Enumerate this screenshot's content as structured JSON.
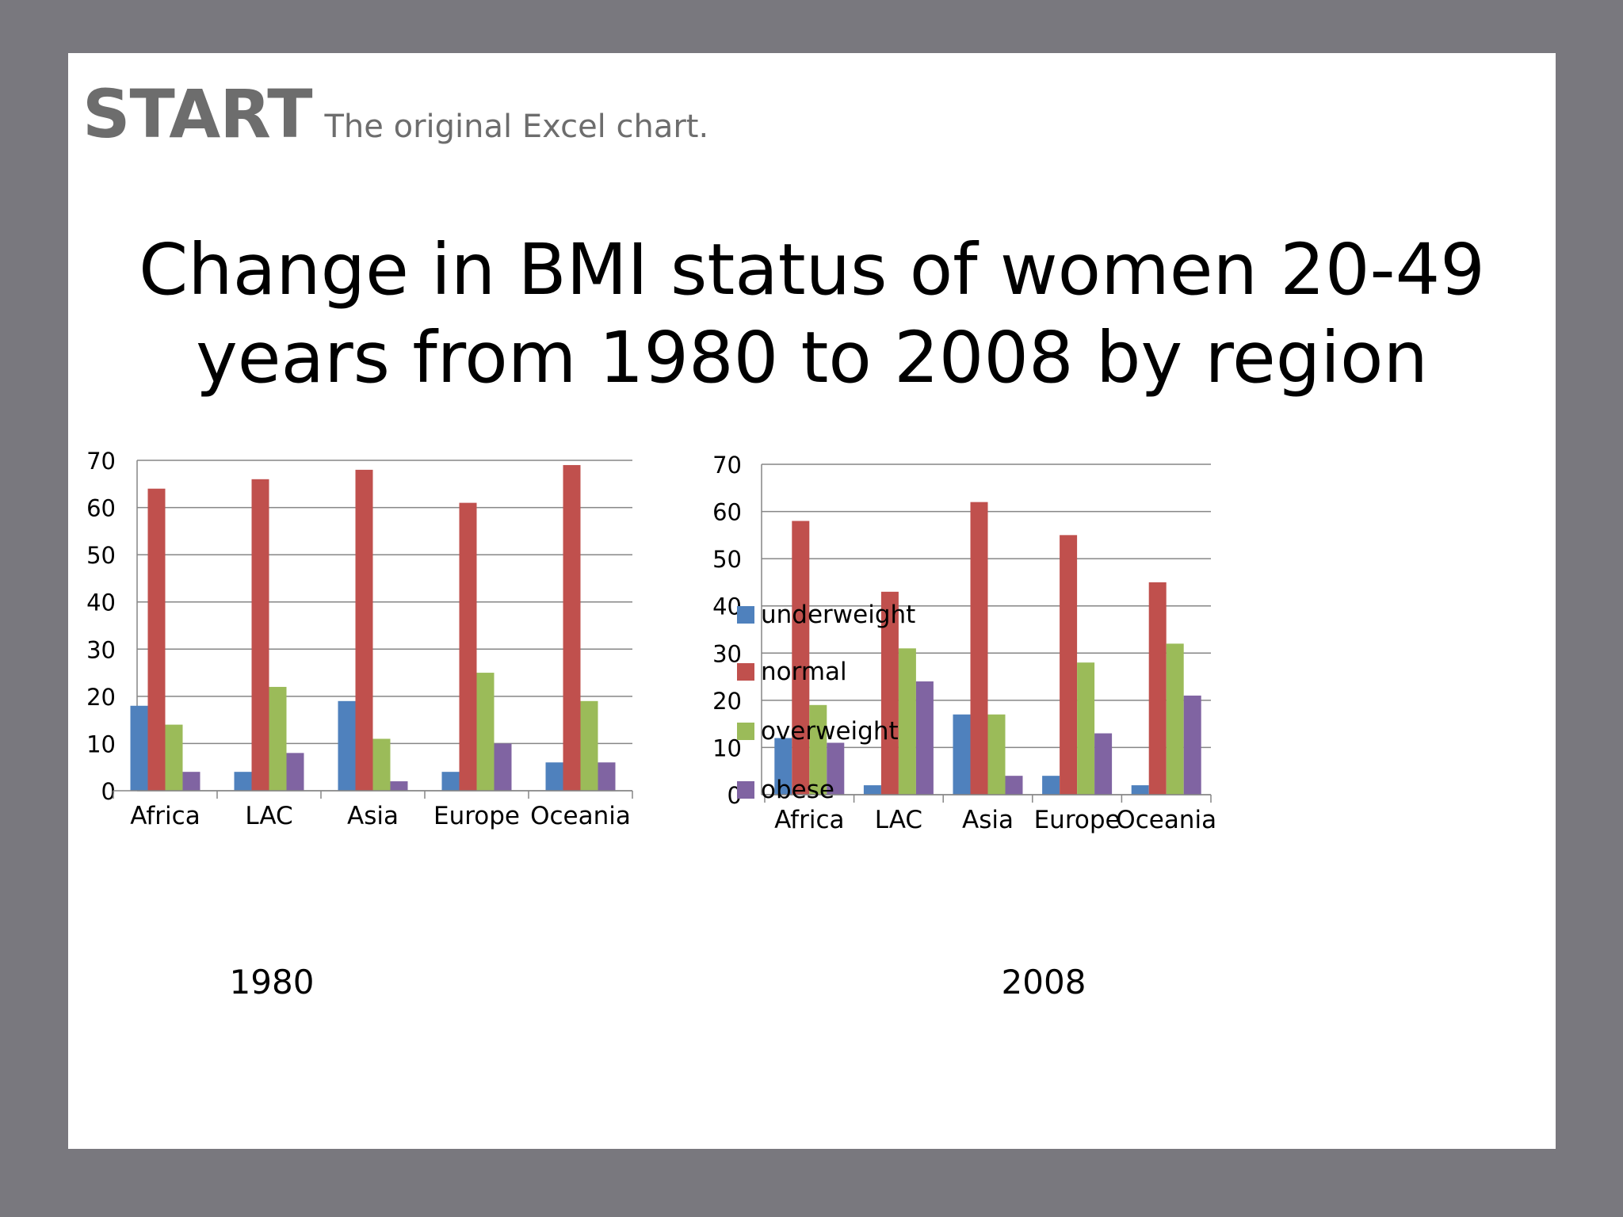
{
  "heading": {
    "start": "START",
    "subtitle": "The original Excel chart."
  },
  "title": "Change in BMI status of women 20-49 years from 1980 to 2008 by region",
  "colors": {
    "underweight": "#4f81bd",
    "normal": "#c0504d",
    "overweight": "#9bbb59",
    "obese": "#8064a2"
  },
  "legend": [
    "underweight",
    "normal",
    "overweight",
    "obese"
  ],
  "chart_data": [
    {
      "type": "bar",
      "title": "1980",
      "categories": [
        "Africa",
        "LAC",
        "Asia",
        "Europe",
        "Oceania"
      ],
      "ylim": [
        0,
        70
      ],
      "yticks": [
        0,
        10,
        20,
        30,
        40,
        50,
        60,
        70
      ],
      "grid": true,
      "legend_position": "right",
      "series": [
        {
          "name": "underweight",
          "color": "#4f81bd",
          "values": [
            18,
            4,
            19,
            4,
            6
          ]
        },
        {
          "name": "normal",
          "color": "#c0504d",
          "values": [
            64,
            66,
            68,
            61,
            69
          ]
        },
        {
          "name": "overweight",
          "color": "#9bbb59",
          "values": [
            14,
            22,
            11,
            25,
            19
          ]
        },
        {
          "name": "obese",
          "color": "#8064a2",
          "values": [
            4,
            8,
            2,
            10,
            6
          ]
        }
      ]
    },
    {
      "type": "bar",
      "title": "2008",
      "categories": [
        "Africa",
        "LAC",
        "Asia",
        "Europe",
        "Oceania"
      ],
      "ylim": [
        0,
        70
      ],
      "yticks": [
        0,
        10,
        20,
        30,
        40,
        50,
        60,
        70
      ],
      "grid": true,
      "series": [
        {
          "name": "underweight",
          "color": "#4f81bd",
          "values": [
            12,
            2,
            17,
            4,
            2
          ]
        },
        {
          "name": "normal",
          "color": "#c0504d",
          "values": [
            58,
            43,
            62,
            55,
            45
          ]
        },
        {
          "name": "overweight",
          "color": "#9bbb59",
          "values": [
            19,
            31,
            17,
            28,
            32
          ]
        },
        {
          "name": "obese",
          "color": "#8064a2",
          "values": [
            11,
            24,
            4,
            13,
            21
          ]
        }
      ]
    }
  ]
}
